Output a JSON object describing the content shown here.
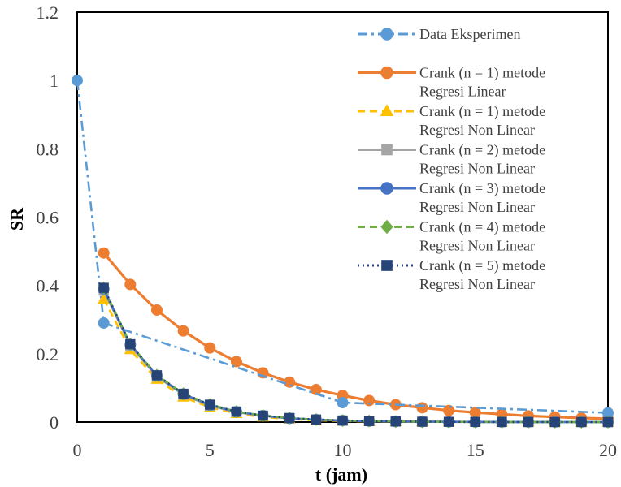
{
  "chart_data": {
    "type": "line",
    "xlabel": "t (jam)",
    "ylabel": "SR",
    "xlim": [
      0,
      20
    ],
    "ylim": [
      0,
      1.2
    ],
    "xticks": [
      0,
      5,
      10,
      15,
      20
    ],
    "yticks": [
      0,
      0.2,
      0.4,
      0.6,
      0.8,
      1,
      1.2
    ],
    "ytick_labels": [
      "0",
      "0.2",
      "0.4",
      "0.6",
      "0.8",
      "1",
      "1.2"
    ],
    "grid": false,
    "legend_position": "top-right",
    "series": [
      {
        "name": "Data Eksperimen",
        "color": "#5b9bd5",
        "line": "dashdot",
        "marker": "circle",
        "x": [
          0,
          1,
          10,
          20
        ],
        "y": [
          1.0,
          0.29,
          0.057,
          0.027
        ]
      },
      {
        "name": "Crank (n = 1) metode Regresi Linear",
        "color": "#ed7d31",
        "line": "solid",
        "marker": "circle",
        "x": [
          1,
          2,
          3,
          4,
          5,
          6,
          7,
          8,
          9,
          10,
          11,
          12,
          13,
          14,
          15,
          16,
          17,
          18,
          19,
          20
        ],
        "y": [
          0.495,
          0.403,
          0.328,
          0.267,
          0.217,
          0.177,
          0.144,
          0.117,
          0.095,
          0.078,
          0.063,
          0.051,
          0.042,
          0.034,
          0.028,
          0.023,
          0.018,
          0.015,
          0.012,
          0.01
        ]
      },
      {
        "name": "Crank (n = 1) metode Regresi Non Linear",
        "color": "#ffc000",
        "line": "dashed",
        "marker": "triangle",
        "x": [
          1,
          2,
          3,
          4,
          5,
          6,
          7,
          8,
          9,
          10,
          11,
          12,
          13,
          14,
          15,
          16,
          17,
          18,
          19,
          20
        ],
        "y": [
          0.36,
          0.212,
          0.125,
          0.073,
          0.043,
          0.025,
          0.015,
          0.009,
          0.005,
          0.003,
          0.002,
          0.001,
          0.0006,
          0.0004,
          0.0002,
          0.0001,
          0.0001,
          0,
          0,
          0
        ]
      },
      {
        "name": "Crank (n = 2) metode Regresi Non Linear",
        "color": "#a5a5a5",
        "line": "solid",
        "marker": "square",
        "x": [
          1,
          2,
          3,
          4,
          5,
          6,
          7,
          8,
          9,
          10,
          11,
          12,
          13,
          14,
          15,
          16,
          17,
          18,
          19,
          20
        ],
        "y": [
          0.385,
          0.224,
          0.133,
          0.08,
          0.048,
          0.029,
          0.018,
          0.011,
          0.007,
          0.004,
          0.0027,
          0.0017,
          0.001,
          0.0006,
          0.0004,
          0.0002,
          0.0001,
          0.0001,
          0,
          0
        ]
      },
      {
        "name": "Crank (n = 3) metode Regresi Non Linear",
        "color": "#4472c4",
        "line": "solid",
        "marker": "circle",
        "x": [
          1,
          2,
          3,
          4,
          5,
          6,
          7,
          8,
          9,
          10,
          11,
          12,
          13,
          14,
          15,
          16,
          17,
          18,
          19,
          20
        ],
        "y": [
          0.39,
          0.227,
          0.136,
          0.082,
          0.05,
          0.03,
          0.019,
          0.011,
          0.007,
          0.0045,
          0.0028,
          0.0017,
          0.0011,
          0.0007,
          0.0004,
          0.0003,
          0.0002,
          0.0001,
          0.0001,
          0
        ]
      },
      {
        "name": "Crank (n = 4) metode Regresi Non Linear",
        "color": "#70ad47",
        "line": "dashed",
        "marker": "diamond",
        "x": [
          1,
          2,
          3,
          4,
          5,
          6,
          7,
          8,
          9,
          10,
          11,
          12,
          13,
          14,
          15,
          16,
          17,
          18,
          19,
          20
        ],
        "y": [
          0.392,
          0.228,
          0.137,
          0.083,
          0.051,
          0.031,
          0.019,
          0.012,
          0.0074,
          0.0046,
          0.0029,
          0.0018,
          0.0011,
          0.0007,
          0.0004,
          0.0003,
          0.0002,
          0.0001,
          0.0001,
          0
        ]
      },
      {
        "name": "Crank (n = 5) metode Regresi Non Linear",
        "color": "#264478",
        "line": "dotted",
        "marker": "square",
        "x": [
          1,
          2,
          3,
          4,
          5,
          6,
          7,
          8,
          9,
          10,
          11,
          12,
          13,
          14,
          15,
          16,
          17,
          18,
          19,
          20
        ],
        "y": [
          0.393,
          0.228,
          0.137,
          0.083,
          0.051,
          0.031,
          0.019,
          0.012,
          0.0075,
          0.0047,
          0.0029,
          0.0018,
          0.0011,
          0.0007,
          0.0004,
          0.0003,
          0.0002,
          0.0001,
          0.0001,
          0
        ]
      }
    ],
    "legend": [
      {
        "lines": [
          "Data Eksperimen"
        ],
        "series": 0
      },
      {
        "lines": [
          "Crank (n = 1) metode",
          "Regresi Linear"
        ],
        "series": 1
      },
      {
        "lines": [
          "Crank (n = 1) metode",
          "Regresi Non Linear"
        ],
        "series": 2
      },
      {
        "lines": [
          "Crank (n = 2) metode",
          "Regresi Non Linear"
        ],
        "series": 3
      },
      {
        "lines": [
          "Crank (n = 3) metode",
          "Regresi Non Linear"
        ],
        "series": 4
      },
      {
        "lines": [
          "Crank (n = 4) metode",
          "Regresi Non Linear"
        ],
        "series": 5
      },
      {
        "lines": [
          "Crank (n = 5) metode",
          "Regresi Non Linear"
        ],
        "series": 6
      }
    ]
  }
}
